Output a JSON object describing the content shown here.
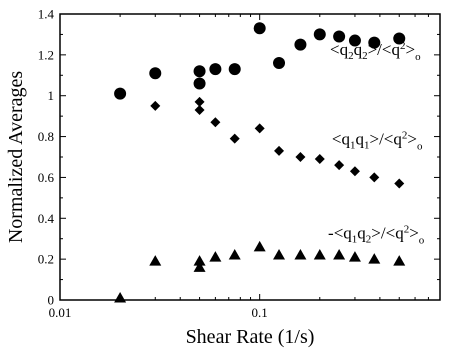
{
  "chart_data": {
    "type": "scatter",
    "xlabel": "Shear Rate (1/s)",
    "ylabel": "Normalized Averages",
    "xscale": "log",
    "xlim": [
      0.01,
      0.8
    ],
    "ylim": [
      0,
      1.4
    ],
    "x_ticks": [
      {
        "value": 0.01,
        "label": "0.01"
      },
      {
        "value": 0.1,
        "label": "0.1"
      }
    ],
    "y_ticks": [
      {
        "value": 0,
        "label": "0"
      },
      {
        "value": 0.2,
        "label": "0.2"
      },
      {
        "value": 0.4,
        "label": "0.4"
      },
      {
        "value": 0.6,
        "label": "0.6"
      },
      {
        "value": 0.8,
        "label": "0.8"
      },
      {
        "value": 1,
        "label": "1"
      },
      {
        "value": 1.2,
        "label": "1.2"
      },
      {
        "value": 1.4,
        "label": "1.4"
      }
    ],
    "grid": false,
    "series": [
      {
        "marker": "circle",
        "color": "#000000",
        "points": [
          {
            "x": 0.02,
            "y": 1.01
          },
          {
            "x": 0.03,
            "y": 1.11
          },
          {
            "x": 0.05,
            "y": 1.06
          },
          {
            "x": 0.05,
            "y": 1.12
          },
          {
            "x": 0.06,
            "y": 1.13
          },
          {
            "x": 0.075,
            "y": 1.13
          },
          {
            "x": 0.1,
            "y": 1.33
          },
          {
            "x": 0.125,
            "y": 1.16
          },
          {
            "x": 0.16,
            "y": 1.25
          },
          {
            "x": 0.2,
            "y": 1.3
          },
          {
            "x": 0.25,
            "y": 1.29
          },
          {
            "x": 0.3,
            "y": 1.27
          },
          {
            "x": 0.375,
            "y": 1.26
          },
          {
            "x": 0.5,
            "y": 1.28
          }
        ]
      },
      {
        "marker": "diamond",
        "color": "#000000",
        "points": [
          {
            "x": 0.03,
            "y": 0.95
          },
          {
            "x": 0.05,
            "y": 0.97
          },
          {
            "x": 0.05,
            "y": 0.93
          },
          {
            "x": 0.06,
            "y": 0.87
          },
          {
            "x": 0.075,
            "y": 0.79
          },
          {
            "x": 0.1,
            "y": 0.84
          },
          {
            "x": 0.125,
            "y": 0.73
          },
          {
            "x": 0.16,
            "y": 0.7
          },
          {
            "x": 0.2,
            "y": 0.69
          },
          {
            "x": 0.25,
            "y": 0.66
          },
          {
            "x": 0.3,
            "y": 0.63
          },
          {
            "x": 0.375,
            "y": 0.6
          },
          {
            "x": 0.5,
            "y": 0.57
          }
        ]
      },
      {
        "marker": "triangle",
        "color": "#000000",
        "points": [
          {
            "x": 0.02,
            "y": 0.01
          },
          {
            "x": 0.03,
            "y": 0.19
          },
          {
            "x": 0.05,
            "y": 0.16
          },
          {
            "x": 0.05,
            "y": 0.19
          },
          {
            "x": 0.06,
            "y": 0.21
          },
          {
            "x": 0.075,
            "y": 0.22
          },
          {
            "x": 0.1,
            "y": 0.26
          },
          {
            "x": 0.125,
            "y": 0.22
          },
          {
            "x": 0.16,
            "y": 0.22
          },
          {
            "x": 0.2,
            "y": 0.22
          },
          {
            "x": 0.25,
            "y": 0.22
          },
          {
            "x": 0.3,
            "y": 0.21
          },
          {
            "x": 0.375,
            "y": 0.2
          },
          {
            "x": 0.5,
            "y": 0.19
          }
        ]
      }
    ],
    "annotations": [
      {
        "prefix": "<q",
        "s1": "2",
        "mid": "q",
        "s2": "2",
        "post": ">/<q",
        "sup": "2",
        "post2": ">",
        "sub": "o",
        "x": 0.225,
        "y": 1.2
      },
      {
        "prefix": "<q",
        "s1": "1",
        "mid": "q",
        "s2": "1",
        "post": ">/<q",
        "sup": "2",
        "post2": ">",
        "sub": "o",
        "x": 0.23,
        "y": 0.76
      },
      {
        "prefix": "-<q",
        "s1": "1",
        "mid": "q",
        "s2": "2",
        "post": ">/<q",
        "sup": "2",
        "post2": ">",
        "sub": "o",
        "x": 0.22,
        "y": 0.3
      }
    ]
  }
}
